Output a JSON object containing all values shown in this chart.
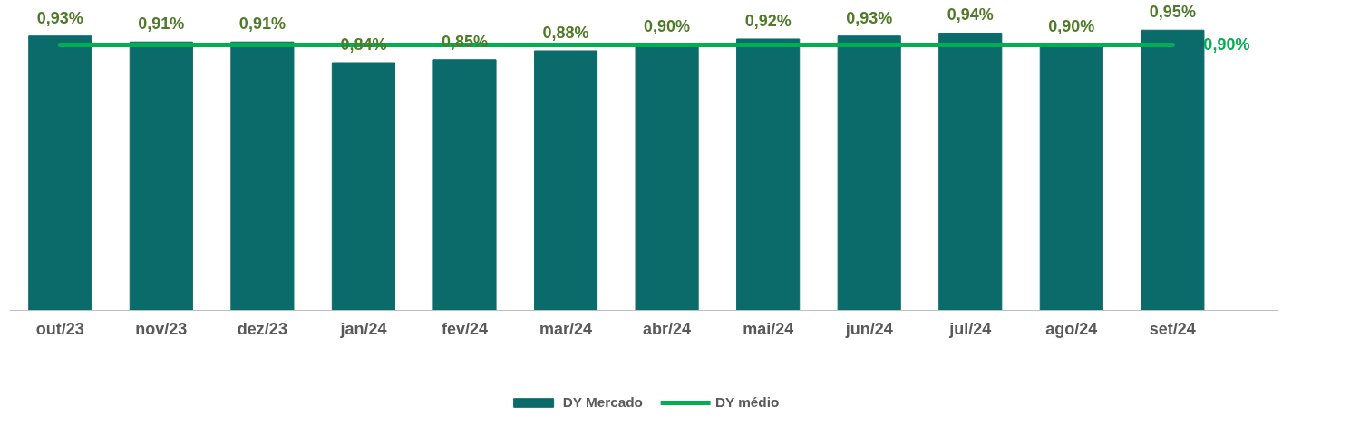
{
  "chart_data": {
    "type": "bar",
    "relative": false,
    "categories": [
      "out/23",
      "nov/23",
      "dez/23",
      "jan/24",
      "fev/24",
      "mar/24",
      "abr/24",
      "mai/24",
      "jun/24",
      "jul/24",
      "ago/24",
      "set/24"
    ],
    "series": [
      {
        "name": "DY Mercado",
        "type": "bar",
        "color": "#0b6b6b",
        "values": [
          0.93,
          0.91,
          0.91,
          0.84,
          0.85,
          0.88,
          0.9,
          0.92,
          0.93,
          0.94,
          0.9,
          0.95
        ],
        "value_labels": [
          "0,93%",
          "0,91%",
          "0,91%",
          "0,84%",
          "0,85%",
          "0,88%",
          "0,90%",
          "0,92%",
          "0,93%",
          "0,94%",
          "0,90%",
          "0,95%"
        ]
      },
      {
        "name": "DY médio",
        "type": "line",
        "color": "#00b050",
        "values": [
          0.9,
          0.9,
          0.9,
          0.9,
          0.9,
          0.9,
          0.9,
          0.9,
          0.9,
          0.9,
          0.9,
          0.9
        ],
        "value_labels": [
          null,
          null,
          null,
          null,
          null,
          null,
          null,
          null,
          null,
          null,
          null,
          "0,90%"
        ]
      }
    ],
    "grid": false,
    "legend": "bottom"
  }
}
